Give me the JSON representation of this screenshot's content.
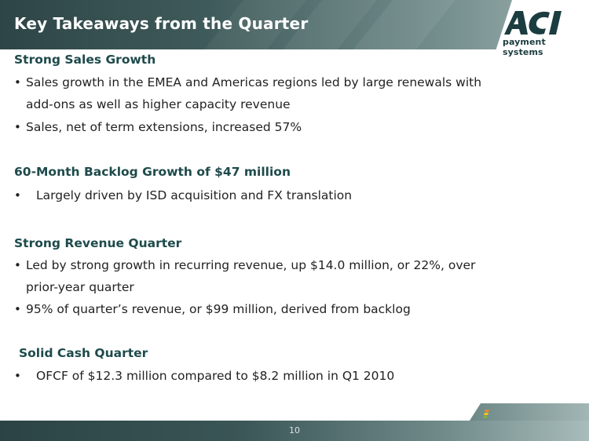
{
  "header": {
    "title": "Key Takeaways from the Quarter"
  },
  "logo": {
    "mark": "ACI",
    "subtitle": "payment systems"
  },
  "sections": [
    {
      "heading": "Strong Sales Growth",
      "bullets": [
        [
          "Sales growth in the EMEA and Americas regions led by large renewals with",
          "add-ons as well as higher capacity revenue"
        ],
        [
          "Sales, net of term extensions, increased 57%"
        ]
      ]
    },
    {
      "heading": "60-Month Backlog Growth of $47 million",
      "bullets": [
        [
          "Largely driven by ISD acquisition and FX translation"
        ]
      ]
    },
    {
      "heading": "Strong Revenue Quarter",
      "bullets": [
        [
          "Led by strong growth in recurring revenue, up $14.0 million, or 22%, over",
          "prior-year quarter"
        ],
        [
          "95% of quarter’s revenue, or $99 million, derived from backlog"
        ]
      ]
    },
    {
      "heading": "Solid Cash Quarter",
      "bullets": [
        [
          "OFCF of $12.3 million compared to $8.2 million in Q1 2010"
        ]
      ]
    }
  ],
  "footer": {
    "page_number": "10"
  },
  "colors": {
    "header_dark": "#2e4546",
    "heading_text": "#1e4a4b",
    "logo": "#1c3d3f",
    "accent_orange": "#e8892a",
    "accent_yellow": "#f3c318",
    "accent_green": "#7bb342"
  },
  "bullet_glyph": "•"
}
